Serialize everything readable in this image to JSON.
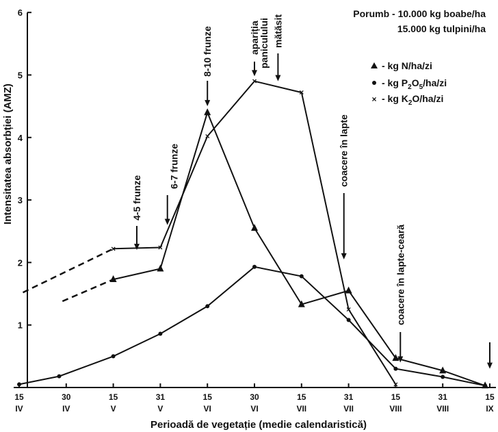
{
  "chart_data": {
    "type": "line",
    "title_lines": [
      "Porumb - 10.000 kg boabe/ha",
      "15.000 kg tulpini/ha"
    ],
    "ylabel": "Intensitatea absorbției (AMZ)",
    "xlabel": "Perioadă de vegetație (medie calendaristică)",
    "ylim": [
      0,
      6
    ],
    "y_ticks": [
      "1",
      "2",
      "3",
      "4",
      "5",
      "6"
    ],
    "x_ticks": [
      {
        "x": 0,
        "day": "15",
        "month": "IV"
      },
      {
        "x": 1,
        "day": "30",
        "month": "IV"
      },
      {
        "x": 2,
        "day": "15",
        "month": "V"
      },
      {
        "x": 3,
        "day": "31",
        "month": "V"
      },
      {
        "x": 4,
        "day": "15",
        "month": "VI"
      },
      {
        "x": 5,
        "day": "30",
        "month": "VI"
      },
      {
        "x": 6,
        "day": "15",
        "month": "VII"
      },
      {
        "x": 7,
        "day": "31",
        "month": "VII"
      },
      {
        "x": 8,
        "day": "15",
        "month": "VIII"
      },
      {
        "x": 9,
        "day": "31",
        "month": "VIII"
      },
      {
        "x": 10,
        "day": "15",
        "month": "IX"
      }
    ],
    "series": [
      {
        "name": "- kg N/ha/zi",
        "marker": "triangle",
        "dashed_points": [
          [
            0.92,
            1.38
          ],
          [
            2.0,
            1.73
          ]
        ],
        "points": [
          [
            2.0,
            1.73
          ],
          [
            3.0,
            1.9
          ],
          [
            4.0,
            4.4
          ],
          [
            5.0,
            2.55
          ],
          [
            6.0,
            1.33
          ],
          [
            7.0,
            1.55
          ],
          [
            8.0,
            0.47
          ],
          [
            9.0,
            0.27
          ],
          [
            9.9,
            0.03
          ]
        ]
      },
      {
        "name": "- kg P2O5/ha/zi",
        "marker": "dot",
        "dashed_points": [],
        "points": [
          [
            0.0,
            0.05
          ],
          [
            0.85,
            0.18
          ],
          [
            2.0,
            0.5
          ],
          [
            3.0,
            0.86
          ],
          [
            4.0,
            1.3
          ],
          [
            5.0,
            1.93
          ],
          [
            6.0,
            1.78
          ],
          [
            7.0,
            1.08
          ],
          [
            8.0,
            0.3
          ],
          [
            9.0,
            0.17
          ],
          [
            9.9,
            0.03
          ]
        ]
      },
      {
        "name": "- kg K2O/ha/zi",
        "marker": "x",
        "dashed_points": [
          [
            0.08,
            1.52
          ],
          [
            2.0,
            2.22
          ]
        ],
        "points": [
          [
            2.0,
            2.22
          ],
          [
            3.0,
            2.24
          ],
          [
            4.0,
            4.02
          ],
          [
            5.0,
            4.9
          ],
          [
            6.0,
            4.72
          ],
          [
            7.0,
            1.25
          ],
          [
            8.0,
            0.05
          ]
        ]
      }
    ],
    "annotations": [
      {
        "label": "4-5 frunze",
        "x": 2.5,
        "y": 2.2
      },
      {
        "label": "6-7 frunze",
        "x": 3.15,
        "y": 2.6
      },
      {
        "label": "8-10 frunze",
        "x": 4.0,
        "y": 4.5
      },
      {
        "label": "apariția",
        "x": 5.0,
        "y": 4.98
      },
      {
        "label": "paniculului",
        "x": 5.0,
        "y": 4.98
      },
      {
        "label": "mătăsit",
        "x": 5.5,
        "y": 4.9
      },
      {
        "label": "coacere în lapte",
        "x": 6.9,
        "y": 2.05
      },
      {
        "label": "coacere în lapte-ceară",
        "x": 8.1,
        "y": 0.4
      },
      {
        "label": "",
        "x": 10.0,
        "y": 0.3
      }
    ],
    "legend_position": "top-right"
  }
}
